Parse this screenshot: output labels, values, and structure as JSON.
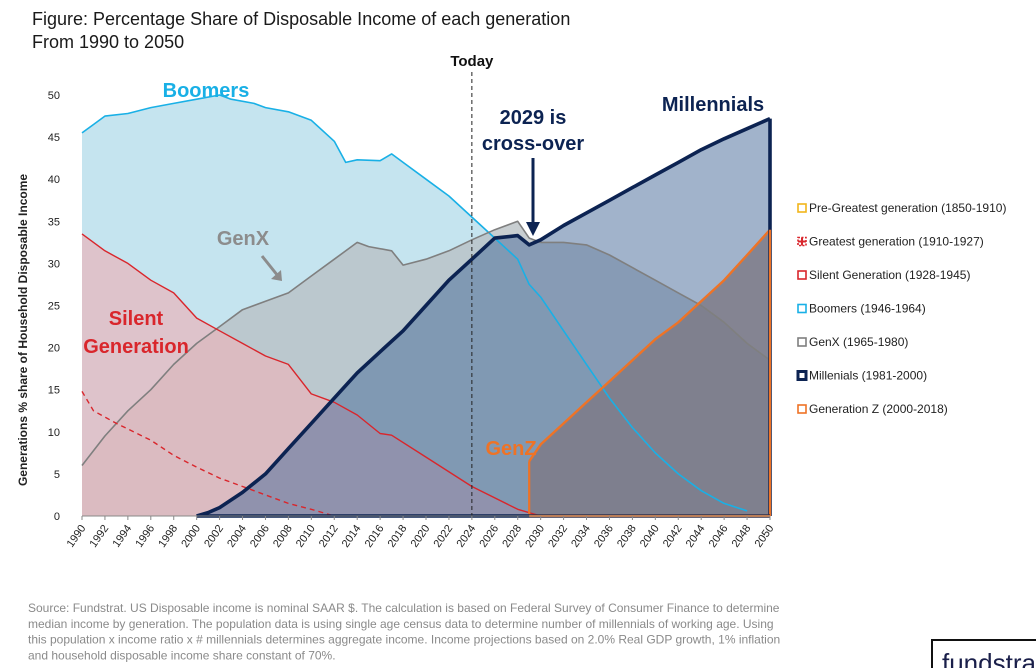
{
  "chart_data": {
    "type": "area",
    "title": "Figure: Percentage Share of Disposable Income of each generation",
    "subtitle": "From 1990 to 2050",
    "ylabel": "Generations % share of Household Disposable Income",
    "xlabel": "",
    "ylim": [
      0,
      50
    ],
    "yticks": [
      "0",
      "5",
      "10",
      "15",
      "20",
      "25",
      "30",
      "35",
      "40",
      "45",
      "50"
    ],
    "xticks": [
      "1990",
      "1992",
      "1994",
      "1996",
      "1998",
      "2000",
      "2002",
      "2004",
      "2006",
      "2008",
      "2010",
      "2012",
      "2014",
      "2016",
      "2018",
      "2020",
      "2022",
      "2024",
      "2026",
      "2028",
      "2030",
      "2032",
      "2034",
      "2036",
      "2038",
      "2040",
      "2042",
      "2044",
      "2046",
      "2048",
      "2050"
    ],
    "today_year": 2024,
    "today_label": "Today",
    "series": [
      {
        "name": "Silent Generation",
        "key": "silent",
        "color": "#d9262c",
        "fill": "#e8b5bd",
        "points": [
          [
            1990,
            33.5
          ],
          [
            1992,
            31.5
          ],
          [
            1994,
            30
          ],
          [
            1996,
            28
          ],
          [
            1998,
            26.5
          ],
          [
            2000,
            23.5
          ],
          [
            2002,
            22
          ],
          [
            2004,
            20.5
          ],
          [
            2006,
            19
          ],
          [
            2008,
            18
          ],
          [
            2010,
            14.5
          ],
          [
            2012,
            13.5
          ],
          [
            2014,
            12
          ],
          [
            2016,
            9.8
          ],
          [
            2017,
            9.6
          ],
          [
            2020,
            7
          ],
          [
            2024,
            3.5
          ],
          [
            2028,
            0.8
          ],
          [
            2030,
            0
          ]
        ]
      },
      {
        "name": "Greatest generation",
        "key": "greatest",
        "color": "#d9262c",
        "dashed": true,
        "points": [
          [
            1990,
            14.8
          ],
          [
            1991,
            12.5
          ],
          [
            1993,
            11
          ],
          [
            1996,
            9
          ],
          [
            1998,
            7.2
          ],
          [
            2000,
            5.8
          ],
          [
            2002,
            4.5
          ],
          [
            2005,
            3
          ],
          [
            2008,
            1.5
          ],
          [
            2010,
            0.8
          ],
          [
            2012,
            0
          ]
        ]
      },
      {
        "name": "Boomers",
        "key": "boomers",
        "color": "#19b0e6",
        "fill": "#c5e4ef",
        "points": [
          [
            1990,
            45.5
          ],
          [
            1991,
            46.5
          ],
          [
            1992,
            47.5
          ],
          [
            1994,
            47.8
          ],
          [
            1996,
            48.5
          ],
          [
            1998,
            49
          ],
          [
            2000,
            49.5
          ],
          [
            2002,
            50
          ],
          [
            2003,
            49.5
          ],
          [
            2005,
            49
          ],
          [
            2006,
            48.5
          ],
          [
            2008,
            48
          ],
          [
            2010,
            47
          ],
          [
            2012,
            44.5
          ],
          [
            2013,
            42
          ],
          [
            2014,
            42.3
          ],
          [
            2016,
            42.2
          ],
          [
            2017,
            43
          ],
          [
            2018,
            42
          ],
          [
            2020,
            40
          ],
          [
            2022,
            38
          ],
          [
            2024,
            35.5
          ],
          [
            2026,
            33
          ],
          [
            2028,
            30.5
          ],
          [
            2029,
            27.5
          ],
          [
            2030,
            26
          ],
          [
            2032,
            22
          ],
          [
            2034,
            18
          ],
          [
            2036,
            14
          ],
          [
            2038,
            10.5
          ],
          [
            2040,
            7.5
          ],
          [
            2042,
            5
          ],
          [
            2044,
            3
          ],
          [
            2046,
            1.5
          ],
          [
            2048,
            0.6
          ]
        ]
      },
      {
        "name": "GenX",
        "key": "genx",
        "color": "#7f7f7f",
        "fill": "#b9c0c4",
        "points": [
          [
            1990,
            6
          ],
          [
            1992,
            9.5
          ],
          [
            1994,
            12.5
          ],
          [
            1996,
            15
          ],
          [
            1998,
            18
          ],
          [
            2000,
            20.5
          ],
          [
            2002,
            22.5
          ],
          [
            2004,
            24.5
          ],
          [
            2006,
            25.5
          ],
          [
            2008,
            26.5
          ],
          [
            2010,
            28.5
          ],
          [
            2012,
            30.5
          ],
          [
            2014,
            32.5
          ],
          [
            2015,
            32
          ],
          [
            2017,
            31.5
          ],
          [
            2018,
            29.8
          ],
          [
            2020,
            30.5
          ],
          [
            2022,
            31.5
          ],
          [
            2024,
            32.8
          ],
          [
            2026,
            34
          ],
          [
            2028,
            35
          ],
          [
            2029,
            33
          ],
          [
            2030,
            32.5
          ],
          [
            2032,
            32.5
          ],
          [
            2034,
            32.2
          ],
          [
            2036,
            31
          ],
          [
            2038,
            29.5
          ],
          [
            2040,
            28
          ],
          [
            2042,
            26.5
          ],
          [
            2044,
            25
          ],
          [
            2046,
            23
          ],
          [
            2048,
            20.5
          ],
          [
            2050,
            18.5
          ]
        ]
      },
      {
        "name": "Millennials",
        "key": "millennials",
        "color": "#0c2352",
        "fill": "#4a6d9c",
        "points": [
          [
            2000,
            0
          ],
          [
            2001,
            0.4
          ],
          [
            2002,
            1
          ],
          [
            2004,
            2.8
          ],
          [
            2006,
            5
          ],
          [
            2008,
            8
          ],
          [
            2010,
            11
          ],
          [
            2012,
            14
          ],
          [
            2014,
            17
          ],
          [
            2016,
            19.5
          ],
          [
            2018,
            22
          ],
          [
            2020,
            25
          ],
          [
            2022,
            28
          ],
          [
            2024,
            30.5
          ],
          [
            2026,
            33
          ],
          [
            2028,
            33.3
          ],
          [
            2029,
            32.2
          ],
          [
            2030,
            32.8
          ],
          [
            2032,
            34.5
          ],
          [
            2034,
            36
          ],
          [
            2036,
            37.5
          ],
          [
            2038,
            39
          ],
          [
            2040,
            40.5
          ],
          [
            2042,
            42
          ],
          [
            2044,
            43.5
          ],
          [
            2046,
            44.8
          ],
          [
            2048,
            46
          ],
          [
            2050,
            47.2
          ]
        ]
      },
      {
        "name": "Generation Z",
        "key": "genz",
        "color": "#ee7326",
        "fill": "#b5876f",
        "points": [
          [
            2029,
            6.5
          ],
          [
            2030,
            8.5
          ],
          [
            2032,
            11
          ],
          [
            2034,
            13.5
          ],
          [
            2036,
            16
          ],
          [
            2038,
            18.5
          ],
          [
            2040,
            21
          ],
          [
            2042,
            23
          ],
          [
            2044,
            25.5
          ],
          [
            2046,
            28
          ],
          [
            2048,
            31
          ],
          [
            2050,
            34
          ]
        ]
      }
    ],
    "annotations": {
      "boomers": "Boomers",
      "genx": "GenX",
      "silent_line1": "Silent",
      "silent_line2": "Generation",
      "millennials": "Millennials",
      "genz": "GenZ",
      "crossover_line1": "2029 is",
      "crossover_line2": "cross-over"
    },
    "legend": [
      {
        "label": "Pre-Greatest generation (1850-1910)",
        "color": "#f2b61b",
        "style": "box"
      },
      {
        "label": "Greatest generation (1910-1927)",
        "color": "#d9262c",
        "style": "dashed"
      },
      {
        "label": "Silent Generation (1928-1945)",
        "color": "#d9262c",
        "style": "box"
      },
      {
        "label": "Boomers (1946-1964)",
        "color": "#19b0e6",
        "style": "box"
      },
      {
        "label": "GenX (1965-1980)",
        "color": "#7f7f7f",
        "style": "box"
      },
      {
        "label": "Millenials (1981-2000)",
        "color": "#0c2352",
        "style": "thick"
      },
      {
        "label": "Generation Z (2000-2018)",
        "color": "#ee7326",
        "style": "box"
      }
    ],
    "legend_position": "right"
  },
  "source_lines": [
    "Source: Fundstrat.  US Disposable income is nominal SAAR $.  The calculation is based on Federal Survey of Consumer Finance to determine",
    "median income by generation.  The population data is using single age census data to determine number of millennials of working age.  Using",
    "this population x income ratio x # millennials determines aggregate income. Income projections based on 2.0% Real GDP growth, 1% inflation",
    "and household disposable income share constant of 70%."
  ],
  "logo_text": "fundstrat"
}
